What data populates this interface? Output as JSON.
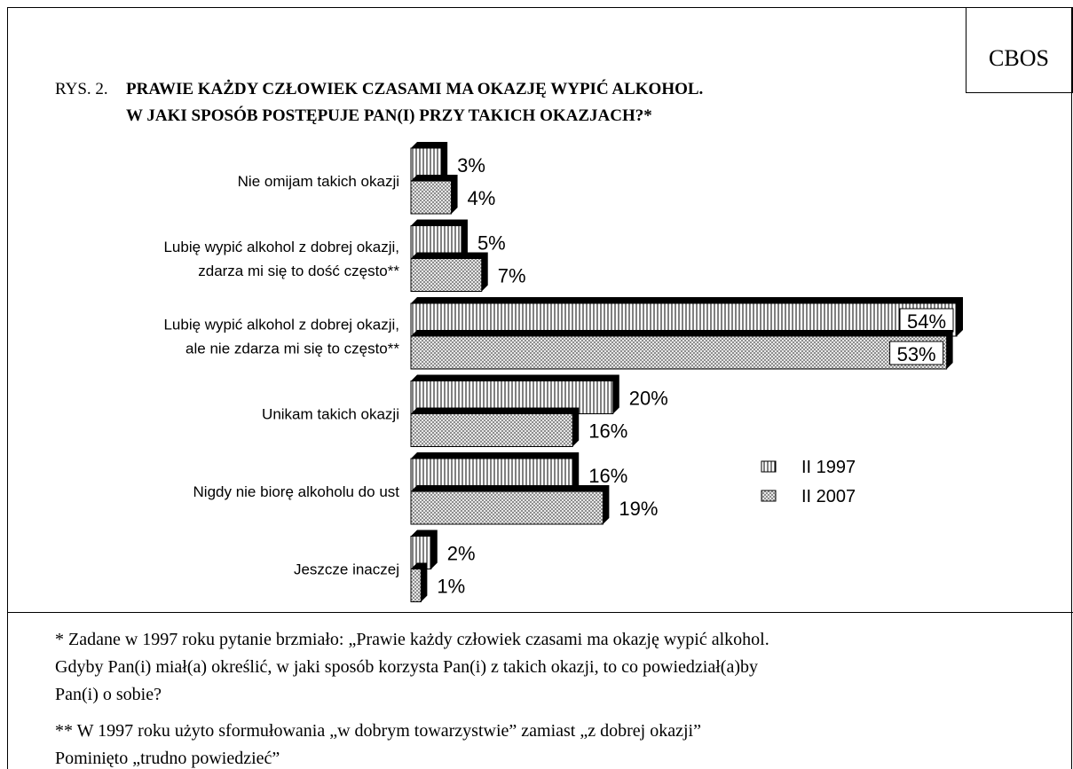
{
  "source": "CBOS",
  "chart_data": {
    "type": "bar",
    "orientation": "horizontal",
    "figure_label": "RYS. 2.",
    "title": [
      "PRAWIE KAŻDY CZŁOWIEK CZASAMI MA OKAZJĘ WYPIĆ ALKOHOL.",
      "W JAKI SPOSÓB POSTĘPUJE PAN(I) PRZY TAKICH OKAZJACH?*"
    ],
    "categories": [
      "Nie omijam takich okazji",
      "Lubię wypić alkohol z dobrej okazji,\nzdarza mi się to dość często**",
      "Lubię wypić alkohol z dobrej okazji,\nale nie zdarza mi się to często**",
      "Unikam takich okazji",
      "Nigdy nie biorę alkoholu do ust",
      "Jeszcze inaczej"
    ],
    "series": [
      {
        "name": "II 1997",
        "pattern": "vertical-lines",
        "values": [
          3,
          5,
          54,
          20,
          16,
          2
        ],
        "value_labels": [
          "3%",
          "5%",
          "54%",
          "20%",
          "16%",
          "2%"
        ]
      },
      {
        "name": "II 2007",
        "pattern": "crosshatch",
        "values": [
          4,
          7,
          53,
          16,
          19,
          1
        ],
        "value_labels": [
          "4%",
          "7%",
          "53%",
          "16%",
          "19%",
          "1%"
        ]
      }
    ],
    "legend": "right"
  },
  "notes": [
    [
      "* Zadane w 1997 roku pytanie brzmiało: „Prawie każdy człowiek czasami ma okazję wypić alkohol.",
      "Gdyby Pan(i) miał(a) określić, w jaki sposób korzysta Pan(i) z takich okazji, to co powiedział(a)by",
      "Pan(i) o sobie?"
    ],
    [
      "** W 1997 roku użyto sformułowania „w dobrym towarzystwie” zamiast „z dobrej okazji”",
      "Pominięto „trudno powiedzieć”"
    ]
  ]
}
